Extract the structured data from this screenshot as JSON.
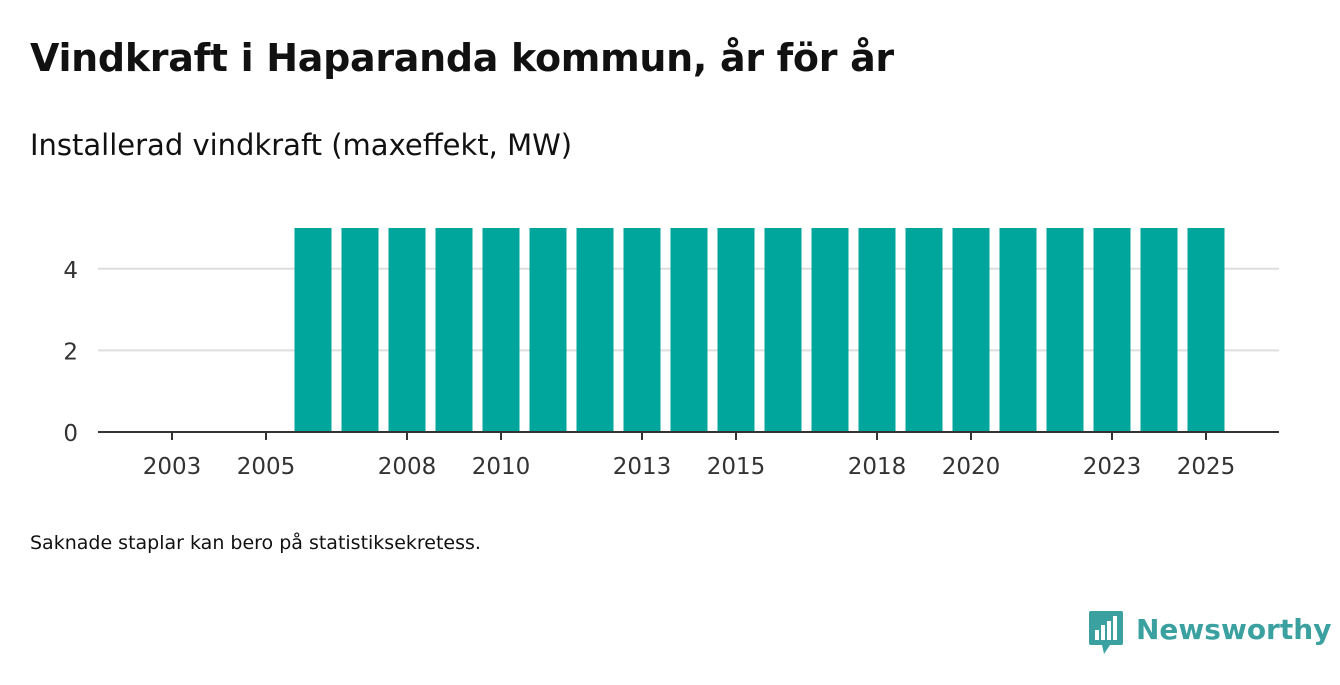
{
  "chart_data": {
    "type": "bar",
    "title": "Vindkraft i Haparanda kommun, år för år",
    "subtitle": "Installerad vindkraft (maxeffekt, MW)",
    "categories": [
      "2003",
      "2004",
      "2005",
      "2006",
      "2007",
      "2008",
      "2009",
      "2010",
      "2011",
      "2012",
      "2013",
      "2014",
      "2015",
      "2016",
      "2017",
      "2018",
      "2019",
      "2020",
      "2021",
      "2022",
      "2023",
      "2024",
      "2025"
    ],
    "values": [
      0,
      0,
      0,
      5,
      5,
      5,
      5,
      5,
      5,
      5,
      5,
      5,
      5,
      5,
      5,
      5,
      5,
      5,
      5,
      5,
      5,
      5,
      5
    ],
    "x_tick_labels": [
      "2003",
      "2005",
      "2008",
      "2010",
      "2013",
      "2015",
      "2018",
      "2020",
      "2023",
      "2025"
    ],
    "y_ticks": [
      0,
      2,
      4
    ],
    "ylim": [
      0,
      5
    ],
    "xlabel": "",
    "ylabel": "",
    "grid": true,
    "bar_color": "#00a59b"
  },
  "footnote": "Saknade staplar kan bero på statistiksekretess.",
  "brand": {
    "name": "Newsworthy",
    "logo_icon": "bar-chart-speech-bubble-icon",
    "color": "#3aa1a0"
  }
}
